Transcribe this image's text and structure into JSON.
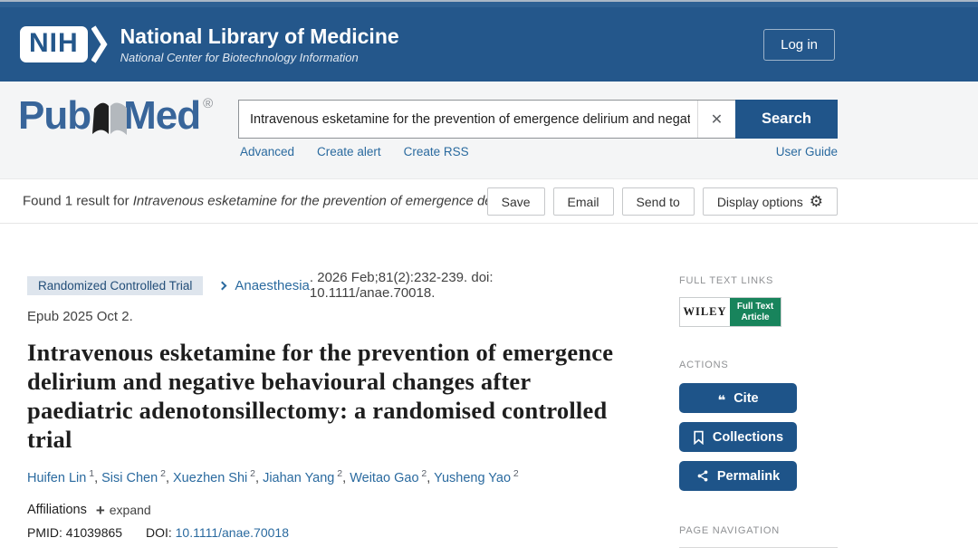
{
  "colors": {
    "header_blue": "#24578B",
    "button_blue": "#20558A",
    "action_button_blue": "#1E5489",
    "link_blue": "#2A6A9F",
    "badge_bg": "#DEE5ED",
    "wiley_green": "#18845C"
  },
  "nih_header": {
    "logo_acronym": "NIH",
    "title": "National Library of Medicine",
    "subtitle": "National Center for Biotechnology Information",
    "login_label": "Log in"
  },
  "search_section": {
    "logo_text_pub": "Pub",
    "logo_text_med": "Med",
    "logo_reg": "®",
    "search_value": "Intravenous esketamine for the prevention of emergence delirium and negat",
    "clear_icon": "✕",
    "search_button": "Search",
    "advanced": "Advanced",
    "create_alert": "Create alert",
    "create_rss": "Create RSS",
    "user_guide": "User Guide"
  },
  "results_bar": {
    "found_prefix": "Found 1 result for ",
    "found_query": "Intravenous esketamine for the prevention of emergence delirium ...",
    "save": "Save",
    "email": "Email",
    "send_to": "Send to",
    "display_options": "Display options",
    "gear_icon": "⚙"
  },
  "article": {
    "badge": "Randomized Controlled Trial",
    "journal": "Anaesthesia",
    "citation": ". 2026 Feb;81(2):232-239. doi: 10.1111/anae.70018.",
    "citation_line2": "Epub 2025 Oct 2.",
    "title": "Intravenous esketamine for the prevention of emergence delirium and negative behavioural changes after paediatric adenotonsillectomy: a randomised controlled trial",
    "authors": [
      {
        "name": "Huifen Lin",
        "sup": "1"
      },
      {
        "name": "Sisi Chen",
        "sup": "2"
      },
      {
        "name": "Xuezhen Shi",
        "sup": "2"
      },
      {
        "name": "Jiahan Yang",
        "sup": "2"
      },
      {
        "name": "Weitao Gao",
        "sup": "2"
      },
      {
        "name": "Yusheng Yao",
        "sup": "2"
      }
    ],
    "affiliations_label": "Affiliations",
    "expand_plus": "+",
    "expand_label": "expand",
    "pmid_label": "PMID:",
    "pmid": "41039865",
    "doi_label": "DOI:",
    "doi": "10.1111/anae.70018"
  },
  "sidebar": {
    "full_text_links_label": "FULL TEXT LINKS",
    "wiley_brand": "WILEY",
    "wiley_line1": "Full Text",
    "wiley_line2": "Article",
    "actions_label": "ACTIONS",
    "cite_label": "Cite",
    "collections_label": "Collections",
    "permalink_label": "Permalink",
    "page_navigation_label": "PAGE NAVIGATION"
  }
}
